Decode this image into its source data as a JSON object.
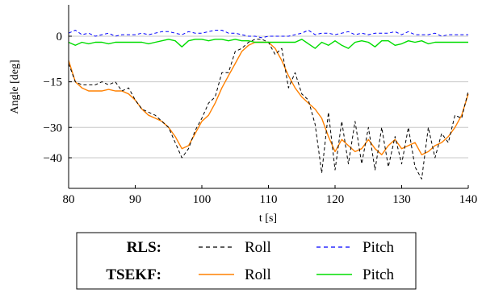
{
  "chart_data": {
    "type": "line",
    "xlabel": "t [s]",
    "ylabel": "Angle [deg]",
    "xlim": [
      80,
      140
    ],
    "ylim": [
      -50,
      10
    ],
    "xticks": [
      80,
      90,
      100,
      110,
      120,
      130,
      140
    ],
    "yticks": [
      0,
      -15,
      -30,
      -40
    ],
    "ytick_labels": [
      "0",
      "−15",
      "−30",
      "−40"
    ],
    "grid": "horizontal",
    "legend": {
      "placement": "bottom-outside",
      "rows": [
        {
          "group": "RLS:",
          "entries": [
            {
              "label": "Roll",
              "color": "#000000",
              "style": "dashed"
            },
            {
              "label": "Pitch",
              "color": "#0000ff",
              "style": "dashed"
            }
          ]
        },
        {
          "group": "TSEKF:",
          "entries": [
            {
              "label": "Roll",
              "color": "#ff8000",
              "style": "solid"
            },
            {
              "label": "Pitch",
              "color": "#00dd00",
              "style": "solid"
            }
          ]
        }
      ]
    },
    "series": [
      {
        "group": "TSEKF",
        "name": "Roll",
        "color": "#ff8000",
        "style": "solid",
        "x": [
          80,
          81,
          82,
          83,
          84,
          85,
          86,
          87,
          88,
          89,
          90,
          91,
          92,
          93,
          94,
          95,
          96,
          97,
          98,
          99,
          100,
          101,
          102,
          103,
          104,
          105,
          106,
          107,
          108,
          109,
          110,
          111,
          112,
          113,
          114,
          115,
          116,
          117,
          118,
          119,
          120,
          121,
          122,
          123,
          124,
          125,
          126,
          127,
          128,
          129,
          130,
          131,
          132,
          133,
          134,
          135,
          136,
          137,
          138,
          139,
          140
        ],
        "y": [
          -8,
          -15,
          -17,
          -18,
          -18,
          -18,
          -17.5,
          -18,
          -18,
          -19,
          -21,
          -24,
          -26,
          -27,
          -28,
          -30,
          -33,
          -37,
          -36,
          -32,
          -28,
          -26,
          -22,
          -17,
          -13,
          -9,
          -5,
          -3,
          -2,
          -2,
          -2,
          -4,
          -8,
          -13,
          -17,
          -20,
          -22,
          -24,
          -27,
          -33,
          -38,
          -34,
          -36,
          -38,
          -37,
          -34,
          -37,
          -39,
          -36,
          -34,
          -37,
          -36,
          -35,
          -39,
          -38,
          -36,
          -35,
          -33,
          -30,
          -26,
          -19
        ]
      },
      {
        "group": "RLS",
        "name": "Roll",
        "color": "#000000",
        "style": "dashed",
        "x": [
          80,
          81,
          82,
          83,
          84,
          85,
          86,
          87,
          88,
          89,
          90,
          91,
          92,
          93,
          94,
          95,
          96,
          97,
          98,
          99,
          100,
          101,
          102,
          103,
          104,
          105,
          106,
          107,
          108,
          109,
          110,
          111,
          112,
          113,
          114,
          115,
          116,
          117,
          118,
          119,
          120,
          121,
          122,
          123,
          124,
          125,
          126,
          127,
          128,
          129,
          130,
          131,
          132,
          133,
          134,
          135,
          136,
          137,
          138,
          139,
          140
        ],
        "y": [
          -9,
          -15,
          -16,
          -16,
          -16,
          -15,
          -16,
          -15,
          -18,
          -17,
          -21,
          -24,
          -25,
          -26,
          -28,
          -30,
          -35,
          -40,
          -37,
          -31,
          -27,
          -22,
          -20,
          -12,
          -12,
          -5,
          -4,
          -2,
          -1,
          -1,
          -2,
          -6,
          -4,
          -17,
          -12,
          -19,
          -21,
          -29,
          -45,
          -25,
          -44,
          -28,
          -42,
          -28,
          -42,
          -30,
          -44,
          -30,
          -43,
          -33,
          -42,
          -30,
          -43,
          -47,
          -30,
          -40,
          -32,
          -35,
          -26,
          -27,
          -18
        ]
      },
      {
        "group": "TSEKF",
        "name": "Pitch",
        "color": "#00dd00",
        "style": "solid",
        "x": [
          80,
          81,
          82,
          83,
          84,
          85,
          86,
          87,
          88,
          89,
          90,
          91,
          92,
          93,
          94,
          95,
          96,
          97,
          98,
          99,
          100,
          101,
          102,
          103,
          104,
          105,
          106,
          107,
          108,
          109,
          110,
          111,
          112,
          113,
          114,
          115,
          116,
          117,
          118,
          119,
          120,
          121,
          122,
          123,
          124,
          125,
          126,
          127,
          128,
          129,
          130,
          131,
          132,
          133,
          134,
          135,
          136,
          137,
          138,
          139,
          140
        ],
        "y": [
          -2,
          -3,
          -2,
          -2.5,
          -2,
          -2,
          -2.5,
          -2,
          -2,
          -2,
          -2,
          -2,
          -2.5,
          -2,
          -1.5,
          -1,
          -1.5,
          -3.5,
          -1.5,
          -1,
          -1,
          -1.5,
          -1,
          -1,
          -1.5,
          -1,
          -1.5,
          -1.5,
          -2,
          -2,
          -2,
          -2,
          -2,
          -2,
          -2,
          -1,
          -2.5,
          -4,
          -2,
          -3,
          -1.5,
          -3,
          -4,
          -2,
          -1.5,
          -2,
          -3.5,
          -1.5,
          -1.5,
          -3,
          -2.5,
          -1.5,
          -2,
          -1.5,
          -2.5,
          -2,
          -2,
          -2,
          -2,
          -2,
          -2
        ]
      },
      {
        "group": "RLS",
        "name": "Pitch",
        "color": "#0000ff",
        "style": "dashed",
        "x": [
          80,
          81,
          82,
          83,
          84,
          85,
          86,
          87,
          88,
          89,
          90,
          91,
          92,
          93,
          94,
          95,
          96,
          97,
          98,
          99,
          100,
          101,
          102,
          103,
          104,
          105,
          106,
          107,
          108,
          109,
          110,
          111,
          112,
          113,
          114,
          115,
          116,
          117,
          118,
          119,
          120,
          121,
          122,
          123,
          124,
          125,
          126,
          127,
          128,
          129,
          130,
          131,
          132,
          133,
          134,
          135,
          136,
          137,
          138,
          139,
          140
        ],
        "y": [
          1,
          2,
          0.5,
          1,
          0,
          0.5,
          1,
          0,
          0.5,
          0.5,
          0.5,
          1,
          0.5,
          1,
          1.5,
          1.5,
          1,
          0.5,
          1.5,
          1,
          1,
          1.5,
          2,
          2,
          1,
          1,
          0.5,
          0,
          0,
          -0.5,
          0,
          0,
          0,
          0,
          0.5,
          1,
          2,
          0.5,
          1,
          1,
          0.5,
          1,
          1.5,
          0.5,
          1,
          0.5,
          1,
          1,
          1,
          1.5,
          0.5,
          1.5,
          0.5,
          0.5,
          0.5,
          1,
          0,
          0.5,
          0.5,
          0.5,
          0.5
        ]
      }
    ]
  }
}
